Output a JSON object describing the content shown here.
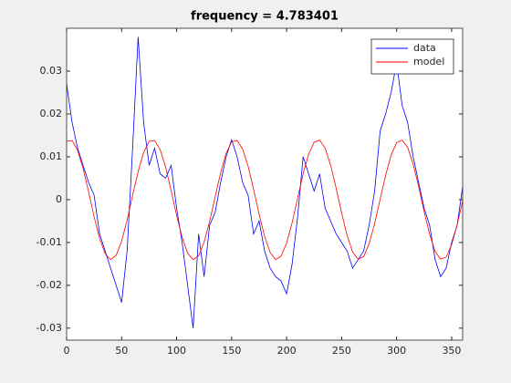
{
  "chart_data": {
    "type": "line",
    "title": "frequency = 4.783401",
    "x": [
      0,
      5,
      10,
      15,
      20,
      25,
      30,
      35,
      40,
      45,
      50,
      55,
      60,
      65,
      70,
      75,
      80,
      85,
      90,
      95,
      100,
      105,
      110,
      115,
      120,
      125,
      130,
      135,
      140,
      145,
      150,
      155,
      160,
      165,
      170,
      175,
      180,
      185,
      190,
      195,
      200,
      205,
      210,
      215,
      220,
      225,
      230,
      235,
      240,
      245,
      250,
      255,
      260,
      265,
      270,
      275,
      280,
      285,
      290,
      295,
      300,
      305,
      310,
      315,
      320,
      325,
      330,
      335,
      340,
      345,
      350,
      355,
      360
    ],
    "series": [
      {
        "name": "data",
        "color": "#0000ff",
        "values": [
          0.027,
          0.018,
          0.012,
          0.008,
          0.004,
          0.001,
          -0.008,
          -0.012,
          -0.016,
          -0.02,
          -0.024,
          -0.012,
          0.012,
          0.038,
          0.018,
          0.008,
          0.012,
          0.006,
          0.005,
          0.008,
          -0.002,
          -0.01,
          -0.02,
          -0.03,
          -0.008,
          -0.018,
          -0.006,
          -0.003,
          0.004,
          0.01,
          0.014,
          0.01,
          0.004,
          0.001,
          -0.008,
          -0.005,
          -0.012,
          -0.016,
          -0.018,
          -0.019,
          -0.022,
          -0.015,
          -0.004,
          0.01,
          0.006,
          0.002,
          0.006,
          -0.002,
          -0.005,
          -0.008,
          -0.01,
          -0.012,
          -0.016,
          -0.014,
          -0.012,
          -0.006,
          0.002,
          0.016,
          0.02,
          0.025,
          0.032,
          0.022,
          0.018,
          0.01,
          0.004,
          -0.002,
          -0.006,
          -0.014,
          -0.018,
          -0.016,
          -0.01,
          -0.006,
          0.003
        ]
      },
      {
        "name": "model",
        "color": "#ff0000",
        "values": [
          0.0136,
          0.0138,
          0.0115,
          0.0073,
          0.0018,
          -0.004,
          -0.0091,
          -0.0126,
          -0.014,
          -0.013,
          -0.0097,
          -0.0048,
          0.001,
          0.0065,
          0.011,
          0.0136,
          0.0138,
          0.0117,
          0.0076,
          0.0021,
          -0.0037,
          -0.0088,
          -0.0125,
          -0.014,
          -0.0131,
          -0.0099,
          -0.0051,
          0.0006,
          0.0063,
          0.0108,
          0.0135,
          0.0138,
          0.0118,
          0.0078,
          0.0024,
          -0.0034,
          -0.0086,
          -0.0123,
          -0.014,
          -0.0132,
          -0.0101,
          -0.0054,
          0.0004,
          0.006,
          0.0106,
          0.0134,
          0.0139,
          0.012,
          0.008,
          0.0027,
          -0.0031,
          -0.0084,
          -0.0122,
          -0.0139,
          -0.0133,
          -0.0103,
          -0.0056,
          0.0001,
          0.0057,
          0.0104,
          0.0133,
          0.0139,
          0.0122,
          0.0083,
          0.003,
          -0.0028,
          -0.0081,
          -0.0121,
          -0.0139,
          -0.0134,
          -0.0105,
          -0.0059,
          -0.0003
        ]
      }
    ],
    "xlim": [
      0,
      360
    ],
    "xticks": [
      0,
      50,
      100,
      150,
      200,
      250,
      300,
      350
    ],
    "ylim": [
      -0.0328,
      0.04
    ],
    "yticks": [
      -0.03,
      -0.02,
      -0.01,
      0,
      0.01,
      0.02,
      0.03
    ],
    "legend": "northeast"
  }
}
